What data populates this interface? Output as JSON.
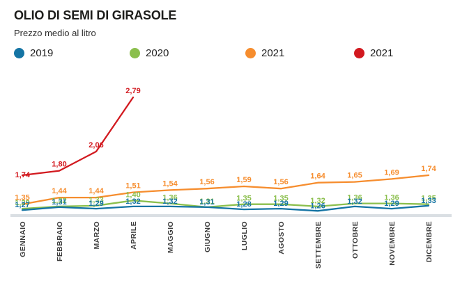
{
  "header": {
    "title": "OLIO DI SEMI DI GIRASOLE",
    "subtitle": "Prezzo medio al litro"
  },
  "legend": [
    {
      "label": "2019",
      "color": "#1474a4"
    },
    {
      "label": "2020",
      "color": "#8bbf4d"
    },
    {
      "label": "2021",
      "color": "#f68d2e"
    },
    {
      "label": "2021",
      "color": "#d2191f"
    }
  ],
  "chart_data": {
    "type": "line",
    "title": "OLIO DI SEMI DI GIRASOLE",
    "subtitle": "Prezzo medio al litro",
    "categories": [
      "GENNAIO",
      "FEBBRAIO",
      "MARZO",
      "APRILE",
      "MAGGIO",
      "GIUGNO",
      "LUGLIO",
      "AGOSTO",
      "SETTEMBRE",
      "OTTOBRE",
      "NOVEMBRE",
      "DICEMBRE"
    ],
    "series": [
      {
        "name": "2019",
        "color": "#1474a4",
        "values": [
          1.27,
          1.31,
          1.29,
          1.32,
          1.32,
          1.31,
          1.28,
          1.29,
          1.26,
          1.32,
          1.29,
          1.33
        ]
      },
      {
        "name": "2020",
        "color": "#8bbf4d",
        "values": [
          1.29,
          1.32,
          1.33,
          1.4,
          1.36,
          1.31,
          1.35,
          1.35,
          1.32,
          1.36,
          1.36,
          1.35
        ]
      },
      {
        "name": "2021",
        "color": "#f68d2e",
        "values": [
          1.35,
          1.44,
          1.44,
          1.51,
          1.54,
          1.56,
          1.59,
          1.56,
          1.64,
          1.65,
          1.69,
          1.74
        ]
      },
      {
        "name": "2021",
        "color": "#d2191f",
        "values": [
          1.74,
          1.8,
          2.06,
          2.79
        ]
      }
    ],
    "decimal_separator": ",",
    "ylim": [
      1.2,
      2.9
    ],
    "grid": false,
    "legend_position": "top",
    "value_labels": true
  }
}
